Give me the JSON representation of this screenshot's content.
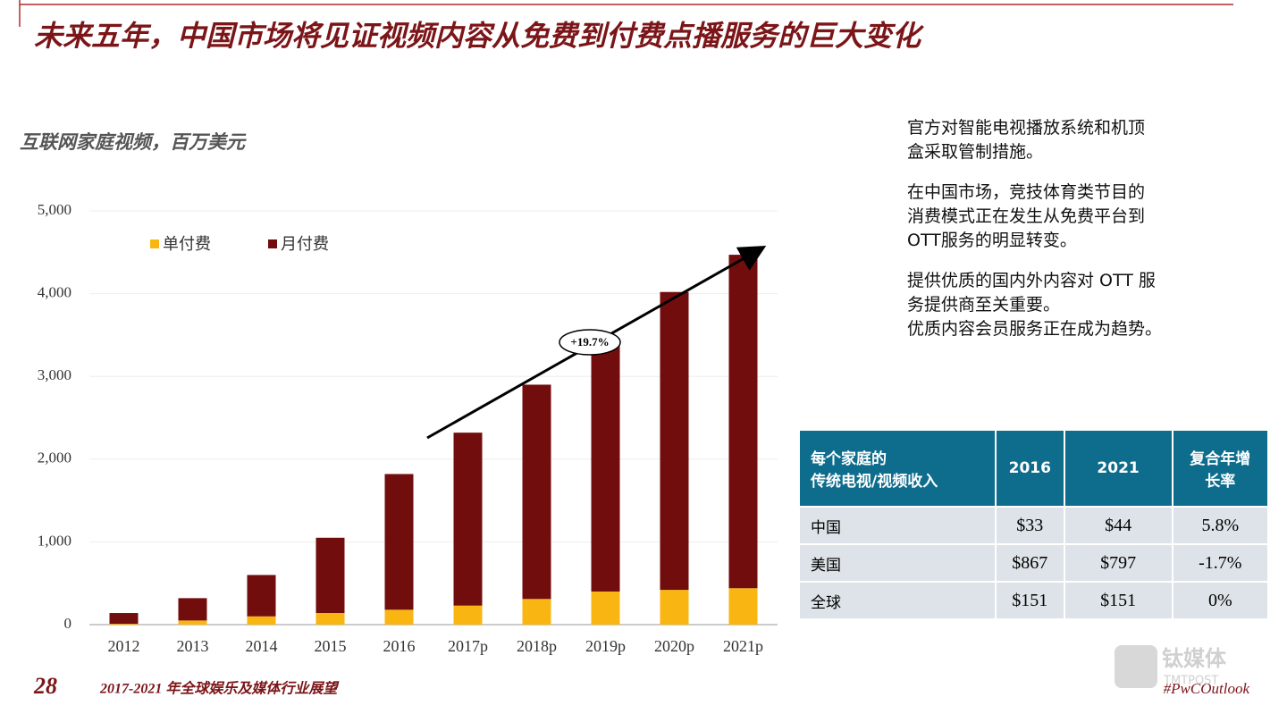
{
  "header": {
    "title": "未来五年，中国市场将见证视频内容从免费到付费点播服务的巨大变化"
  },
  "chart_data": {
    "type": "stacked-bar",
    "title": "互联网家庭视频，百万美元",
    "categories": [
      "2012",
      "2013",
      "2014",
      "2015",
      "2016",
      "2017p",
      "2018p",
      "2019p",
      "2020p",
      "2021p"
    ],
    "series": [
      {
        "name": "单付费",
        "color": "#f9b612",
        "values": [
          10,
          50,
          100,
          140,
          180,
          230,
          310,
          400,
          420,
          440
        ]
      },
      {
        "name": "月付费",
        "color": "#720d0e",
        "values": [
          130,
          270,
          500,
          910,
          1640,
          2090,
          2590,
          3000,
          3600,
          4030
        ]
      }
    ],
    "ylim": [
      0,
      5000
    ],
    "yticks": [
      0,
      {
        "value": 1000,
        "label": "1,000"
      },
      {
        "value": 2000,
        "label": "2,000"
      },
      {
        "value": 3000,
        "label": "3,000"
      },
      {
        "value": 4000,
        "label": "4,000"
      },
      {
        "value": 5000,
        "label": "5,000"
      }
    ],
    "grid": true,
    "legend": "top-left",
    "annotation": "+19.7%"
  },
  "notes": [
    [
      "官方对智能电视播放系统和机顶",
      "盒采取管制措施。"
    ],
    [
      "在中国市场，竞技体育类节目的",
      "消费模式正在发生从免费平台到",
      "OTT服务的明显转变。"
    ],
    [
      "提供优质的国内外内容对 OTT 服",
      "务提供商至关重要。",
      "优质内容会员服务正在成为趋势。"
    ]
  ],
  "table": {
    "header": [
      [
        "每个家庭的",
        "传统电视/视频收入"
      ],
      "2016",
      "2021",
      [
        "复合年增",
        "长率"
      ]
    ],
    "rows": [
      [
        "中国",
        "$33",
        "$44",
        "5.8%"
      ],
      [
        "美国",
        "$867",
        "$797",
        "-1.7%"
      ],
      [
        "全球",
        "$151",
        "$151",
        "0%"
      ]
    ]
  },
  "footer": {
    "page": "28",
    "report": "2017-2021 年全球娱乐及媒体行业展望",
    "tag": "#PwCOutlook",
    "watermark": "钛媒体",
    "watermark_en": "TMTPOST"
  }
}
